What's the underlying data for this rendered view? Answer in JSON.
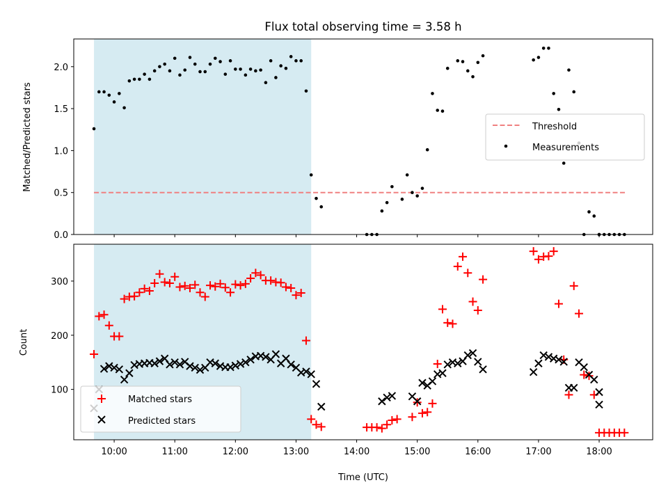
{
  "chart_data": [
    {
      "type": "scatter",
      "title": "Flux total observing time = 3.58 h",
      "ylabel": "Matched/Predicted stars",
      "ylim": [
        0,
        2.33
      ],
      "yticks": [
        0.0,
        0.5,
        1.0,
        1.5,
        2.0
      ],
      "ytick_labels": [
        "0.0",
        "0.5",
        "1.0",
        "1.5",
        "2.0"
      ],
      "xlim": [
        "09:20",
        "18:53"
      ],
      "shaded_interval": [
        "09:40",
        "13:15"
      ],
      "shade_color": "#add8e6",
      "threshold": {
        "name": "Threshold",
        "value": 0.5,
        "x_range": [
          "09:40",
          "18:27"
        ],
        "color": "#f08080"
      },
      "legend": {
        "position": "center-right",
        "entries": [
          "Threshold",
          "Measurements"
        ]
      },
      "series": [
        {
          "name": "Measurements",
          "color": "#000000",
          "x": [
            "09:40",
            "09:45",
            "09:50",
            "09:55",
            "10:00",
            "10:05",
            "10:10",
            "10:15",
            "10:20",
            "10:25",
            "10:30",
            "10:35",
            "10:40",
            "10:45",
            "10:50",
            "10:55",
            "11:00",
            "11:05",
            "11:10",
            "11:15",
            "11:20",
            "11:25",
            "11:30",
            "11:35",
            "11:40",
            "11:45",
            "11:50",
            "11:55",
            "12:00",
            "12:05",
            "12:10",
            "12:15",
            "12:20",
            "12:25",
            "12:30",
            "12:35",
            "12:40",
            "12:45",
            "12:50",
            "12:55",
            "13:00",
            "13:05",
            "13:10",
            "13:15",
            "13:20",
            "13:25",
            "14:10",
            "14:15",
            "14:20",
            "14:25",
            "14:30",
            "14:35",
            "14:45",
            "14:50",
            "14:55",
            "15:00",
            "15:05",
            "15:10",
            "15:15",
            "15:20",
            "15:25",
            "15:30",
            "15:40",
            "15:45",
            "15:50",
            "15:55",
            "16:00",
            "16:05",
            "16:55",
            "17:00",
            "17:05",
            "17:10",
            "17:15",
            "17:20",
            "17:25",
            "17:30",
            "17:35",
            "17:40",
            "17:45",
            "17:50",
            "17:55",
            "18:00",
            "18:00",
            "18:05",
            "18:10",
            "18:15",
            "18:20",
            "18:25"
          ],
          "y": [
            1.26,
            1.7,
            1.7,
            1.66,
            1.58,
            1.68,
            1.51,
            1.83,
            1.85,
            1.85,
            1.91,
            1.85,
            1.95,
            2.0,
            2.03,
            1.95,
            2.1,
            1.9,
            1.96,
            2.11,
            2.03,
            1.94,
            1.94,
            2.03,
            2.1,
            2.06,
            1.91,
            2.07,
            1.97,
            1.97,
            1.9,
            1.97,
            1.95,
            1.96,
            1.81,
            2.07,
            1.87,
            2.01,
            1.98,
            2.12,
            2.07,
            2.07,
            1.71,
            0.71,
            0.43,
            0.33,
            0.0,
            0.0,
            0.0,
            0.28,
            0.38,
            0.57,
            0.42,
            0.71,
            0.5,
            0.46,
            0.55,
            1.01,
            1.68,
            1.48,
            1.47,
            1.98,
            2.07,
            2.06,
            1.95,
            1.88,
            2.05,
            2.13,
            2.08,
            2.11,
            2.22,
            2.22,
            1.68,
            1.49,
            0.85,
            1.96,
            1.7,
            1.09,
            0.0,
            0.27,
            0.22,
            0.0,
            0.0,
            0.0,
            0.0,
            0.0,
            0.0,
            0.0
          ]
        }
      ]
    },
    {
      "type": "scatter",
      "xlabel": "Time (UTC)",
      "ylabel": "Count",
      "ylim": [
        7,
        368
      ],
      "yticks": [
        100,
        200,
        300
      ],
      "ytick_labels": [
        "100",
        "200",
        "300"
      ],
      "xlim": [
        "09:20",
        "18:53"
      ],
      "xticks": [
        "10:00",
        "11:00",
        "12:00",
        "13:00",
        "14:00",
        "15:00",
        "16:00",
        "17:00",
        "18:00"
      ],
      "shaded_interval": [
        "09:40",
        "13:15"
      ],
      "shade_color": "#add8e6",
      "legend": {
        "position": "lower-left",
        "entries": [
          "Matched stars",
          "Predicted stars"
        ]
      },
      "series": [
        {
          "name": "Matched stars",
          "marker": "+",
          "color": "#ff0000",
          "x": [
            "09:40",
            "09:45",
            "09:50",
            "09:55",
            "10:00",
            "10:05",
            "10:10",
            "10:15",
            "10:20",
            "10:25",
            "10:30",
            "10:35",
            "10:40",
            "10:45",
            "10:50",
            "10:55",
            "11:00",
            "11:05",
            "11:10",
            "11:15",
            "11:20",
            "11:25",
            "11:30",
            "11:35",
            "11:40",
            "11:45",
            "11:50",
            "11:55",
            "12:00",
            "12:05",
            "12:10",
            "12:15",
            "12:20",
            "12:25",
            "12:30",
            "12:35",
            "12:40",
            "12:45",
            "12:50",
            "12:55",
            "13:00",
            "13:05",
            "13:10",
            "13:15",
            "13:20",
            "13:25",
            "14:10",
            "14:15",
            "14:20",
            "14:25",
            "14:30",
            "14:35",
            "14:40",
            "14:55",
            "15:00",
            "15:05",
            "15:10",
            "15:15",
            "15:20",
            "15:25",
            "15:30",
            "15:35",
            "15:40",
            "15:45",
            "15:50",
            "15:55",
            "16:00",
            "16:05",
            "16:55",
            "17:00",
            "17:05",
            "17:10",
            "17:15",
            "17:20",
            "17:25",
            "17:30",
            "17:35",
            "17:40",
            "17:45",
            "17:50",
            "17:55",
            "18:00",
            "18:05",
            "18:10",
            "18:15",
            "18:20",
            "18:25"
          ],
          "y": [
            165,
            235,
            238,
            218,
            198,
            198,
            267,
            271,
            272,
            279,
            286,
            282,
            296,
            313,
            298,
            296,
            308,
            289,
            291,
            287,
            293,
            279,
            271,
            292,
            290,
            295,
            288,
            279,
            294,
            292,
            295,
            305,
            315,
            311,
            301,
            301,
            298,
            297,
            289,
            287,
            274,
            278,
            190,
            45,
            35,
            31,
            30,
            30,
            30,
            28,
            35,
            43,
            45,
            49,
            76,
            56,
            58,
            74,
            147,
            248,
            223,
            221,
            327,
            345,
            315,
            262,
            246,
            303,
            355,
            340,
            345,
            346,
            355,
            258,
            155,
            90,
            291,
            240,
            127,
            125,
            90,
            20,
            20,
            20,
            20,
            20,
            20
          ]
        },
        {
          "name": "Predicted stars",
          "marker": "x",
          "color": "#000000",
          "x": [
            "09:40",
            "09:45",
            "09:50",
            "09:55",
            "10:00",
            "10:05",
            "10:10",
            "10:15",
            "10:20",
            "10:25",
            "10:30",
            "10:35",
            "10:40",
            "10:45",
            "10:50",
            "10:55",
            "11:00",
            "11:05",
            "11:10",
            "11:15",
            "11:20",
            "11:25",
            "11:30",
            "11:35",
            "11:40",
            "11:45",
            "11:50",
            "11:55",
            "12:00",
            "12:05",
            "12:10",
            "12:15",
            "12:20",
            "12:25",
            "12:30",
            "12:35",
            "12:40",
            "12:45",
            "12:50",
            "12:55",
            "13:00",
            "13:05",
            "13:10",
            "13:15",
            "13:20",
            "13:25",
            "14:25",
            "14:30",
            "14:35",
            "14:55",
            "15:00",
            "15:05",
            "15:10",
            "15:15",
            "15:20",
            "15:25",
            "15:30",
            "15:35",
            "15:40",
            "15:45",
            "15:50",
            "15:55",
            "16:00",
            "16:05",
            "16:55",
            "17:00",
            "17:05",
            "17:10",
            "17:15",
            "17:20",
            "17:25",
            "17:30",
            "17:35",
            "17:40",
            "17:45",
            "17:50",
            "17:55",
            "18:00",
            "18:00"
          ],
          "y": [
            65,
            100,
            138,
            143,
            140,
            137,
            118,
            130,
            145,
            147,
            148,
            149,
            148,
            152,
            157,
            146,
            150,
            146,
            151,
            143,
            140,
            136,
            140,
            150,
            148,
            143,
            141,
            141,
            144,
            147,
            150,
            155,
            161,
            162,
            160,
            155,
            165,
            148,
            157,
            146,
            140,
            131,
            133,
            128,
            110,
            68,
            78,
            85,
            88,
            87,
            78,
            112,
            107,
            115,
            128,
            130,
            146,
            150,
            148,
            152,
            163,
            167,
            151,
            137,
            132,
            148,
            163,
            160,
            157,
            155,
            151,
            103,
            103,
            150,
            141,
            127,
            118,
            95,
            72
          ]
        }
      ]
    }
  ]
}
